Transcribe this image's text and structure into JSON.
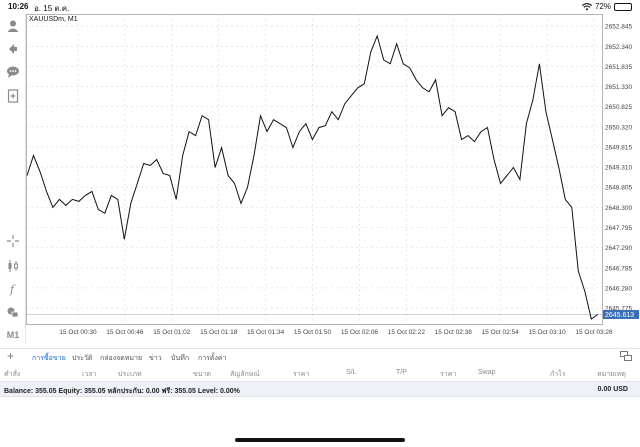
{
  "status_bar": {
    "time": "10:26",
    "date": "อ. 15 ต.ค.",
    "battery_percent_label": "72%",
    "battery_level": 0.72
  },
  "toolbar": {
    "timeframe_label": "M1"
  },
  "chart": {
    "symbol_label": "XAUUSDm, M1",
    "current_price_label": "2645.613",
    "colors": {
      "line": "#111111",
      "grid": "#d9d9d9",
      "price_tag": "#3a6fb5",
      "axis_text": "#444444"
    }
  },
  "chart_data": {
    "type": "line",
    "y_ticks": [
      "2652.845",
      "2652.340",
      "2651.835",
      "2651.330",
      "2650.825",
      "2650.320",
      "2649.815",
      "2649.310",
      "2648.805",
      "2648.300",
      "2647.795",
      "2647.290",
      "2646.785",
      "2646.280",
      "2645.775"
    ],
    "x_ticks": [
      "15 Oct 00:30",
      "15 Oct 00:46",
      "15 Oct 01:02",
      "15 Oct 01:18",
      "15 Oct 01:34",
      "15 Oct 01:50",
      "15 Oct 02:06",
      "15 Oct 02:22",
      "15 Oct 02:38",
      "15 Oct 02:54",
      "15 Oct 03:10",
      "15 Oct 03:26"
    ],
    "ylim": [
      2645.55,
      2653.05
    ],
    "xlim": [
      0,
      177
    ],
    "grid": true,
    "x": [
      0,
      2,
      4,
      6,
      8,
      10,
      12,
      14,
      16,
      18,
      20,
      22,
      24,
      26,
      28,
      30,
      32,
      34,
      36,
      38,
      40,
      42,
      44,
      46,
      48,
      50,
      52,
      54,
      56,
      58,
      60,
      62,
      64,
      66,
      68,
      70,
      72,
      74,
      76,
      78,
      80,
      82,
      84,
      86,
      88,
      90,
      92,
      94,
      96,
      98,
      100,
      102,
      104,
      106,
      108,
      110,
      112,
      114,
      116,
      118,
      120,
      122,
      124,
      126,
      128,
      130,
      132,
      134,
      136,
      138,
      140,
      142,
      144,
      146,
      148,
      150,
      152,
      154,
      156,
      158,
      160,
      162,
      164,
      166,
      168,
      170,
      172,
      174,
      176
    ],
    "values": [
      2649.1,
      2649.6,
      2649.2,
      2648.7,
      2648.3,
      2648.5,
      2648.35,
      2648.5,
      2648.45,
      2648.6,
      2648.7,
      2648.25,
      2648.15,
      2648.6,
      2648.5,
      2647.5,
      2648.4,
      2648.9,
      2649.4,
      2649.35,
      2649.5,
      2649.15,
      2649.1,
      2648.5,
      2649.6,
      2650.2,
      2650.1,
      2650.6,
      2650.5,
      2649.3,
      2649.8,
      2649.1,
      2648.9,
      2648.4,
      2648.8,
      2649.6,
      2650.6,
      2650.2,
      2650.5,
      2650.4,
      2650.3,
      2649.8,
      2650.2,
      2650.4,
      2650.0,
      2650.3,
      2650.35,
      2650.7,
      2650.5,
      2650.9,
      2651.1,
      2651.3,
      2651.4,
      2652.2,
      2652.6,
      2652.0,
      2651.9,
      2652.4,
      2651.9,
      2651.8,
      2651.5,
      2651.3,
      2651.2,
      2651.5,
      2650.6,
      2650.8,
      2650.7,
      2650.0,
      2650.1,
      2649.95,
      2650.2,
      2650.3,
      2649.5,
      2648.9,
      2649.1,
      2649.3,
      2649.0,
      2650.4,
      2651.0,
      2651.9,
      2650.7,
      2650.0,
      2649.3,
      2648.5,
      2648.3,
      2646.7,
      2646.2,
      2645.5,
      2645.613
    ]
  },
  "tabs": [
    "การซื้อขาย",
    "ประวัติ",
    "กล่องจดหมาย",
    "ข่าว",
    "บันทึก",
    "การตั้งค่า"
  ],
  "columns": [
    "คำสั่ง",
    "เวลา",
    "ประเภท",
    "ขนาด",
    "สัญลักษณ์",
    "ราคา",
    "S/L",
    "T/P",
    "ราคา",
    "Swap",
    "กำไร",
    "หมายเหตุ"
  ],
  "account": {
    "balance_line": "Balance: 355.05 Equity: 355.05 หลักประกัน: 0.00 ฟรี: 355.05 Level: 0.00%",
    "total": "0.00  USD"
  }
}
